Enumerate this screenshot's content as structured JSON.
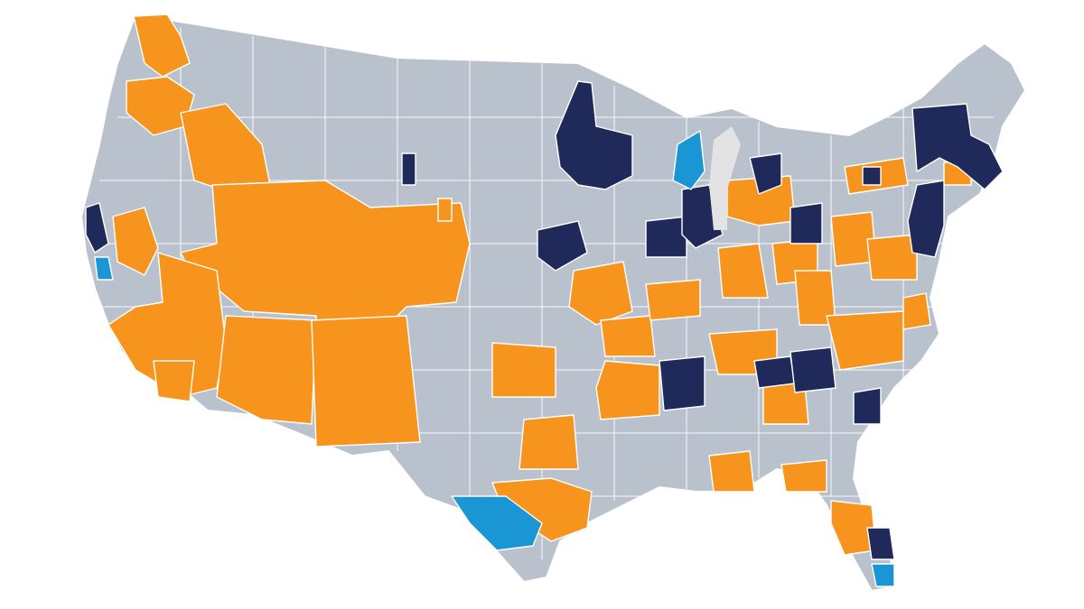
{
  "map": {
    "colors": {
      "background": "#ffffff",
      "other": "#b9c1cc",
      "orange": "#f7941d",
      "navy": "#1f2a5a",
      "light_blue": "#1996d3",
      "water": "#e3e3e3"
    },
    "legend": []
  }
}
